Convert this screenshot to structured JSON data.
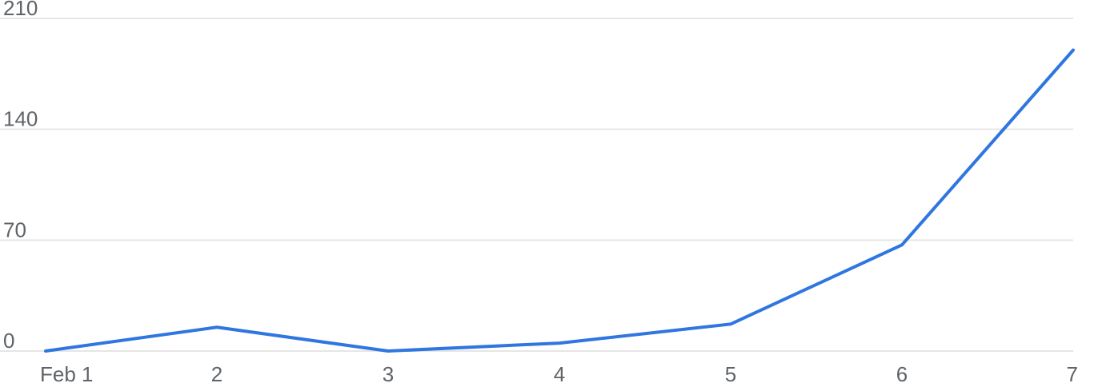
{
  "chart_data": {
    "type": "line",
    "title": "",
    "xlabel": "",
    "ylabel": "",
    "categories": [
      "Feb 1",
      "2",
      "3",
      "4",
      "5",
      "6",
      "7"
    ],
    "dates": [
      "Feb 1",
      "Feb 2",
      "Feb 3",
      "Feb 4",
      "Feb 5",
      "Feb 6",
      "Feb 7"
    ],
    "series": [
      {
        "values": [
          0,
          15,
          0,
          5,
          17,
          67,
          190
        ],
        "color": "#2f76e0"
      }
    ],
    "y_ticks": [
      "0",
      "70",
      "140",
      "210"
    ],
    "y_tick_values": [
      0,
      70,
      140,
      210
    ],
    "ylim": [
      0,
      210
    ],
    "grid": true,
    "legend": "none"
  }
}
